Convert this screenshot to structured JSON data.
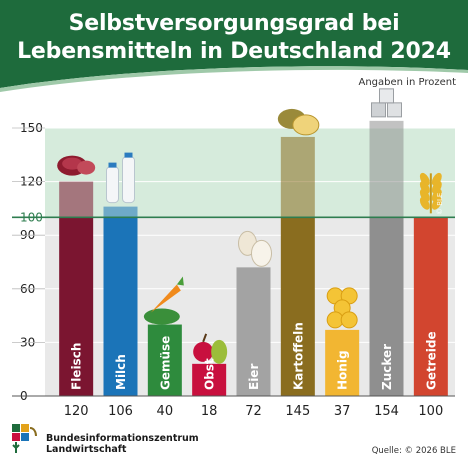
{
  "header": {
    "title_line1": "Selbstversorgungsgrad bei",
    "title_line2": "Lebensmitteln in Deutschland 2024",
    "unit_note": "Angaben in Prozent"
  },
  "footer": {
    "org_line1": "Bundesinformationszentrum",
    "org_line2": "Landwirtschaft",
    "source": "Quelle: © 2026 BLE",
    "watermark": "© BLE"
  },
  "colors": {
    "brand_green": "#1e6b3c",
    "band_green": "#d6ebdc",
    "below_grey": "#e9e9e9",
    "reference_line": "#2e7d4f"
  },
  "chart_data": {
    "type": "bar",
    "categories": [
      "Fleisch",
      "Milch",
      "Gemüse",
      "Obst",
      "Eier",
      "Kartoffeln",
      "Honig",
      "Zucker",
      "Getreide"
    ],
    "values": [
      120,
      106,
      40,
      18,
      72,
      145,
      37,
      154,
      100
    ],
    "colors": [
      "#7b1530",
      "#1b74b8",
      "#2e8b3d",
      "#c8103e",
      "#a3a3a3",
      "#8a6d1f",
      "#f2b632",
      "#8f8f8f",
      "#d2452f"
    ],
    "icons": [
      "meat-icon",
      "milk-bottles-icon",
      "vegetables-icon",
      "fruit-icon",
      "eggs-icon",
      "potatoes-icon",
      "honey-icon",
      "sugar-cubes-icon",
      "grain-icon"
    ],
    "ylim": [
      0,
      150
    ],
    "yticks": [
      0,
      30,
      60,
      90,
      100,
      120,
      150
    ],
    "reference_value": 100,
    "grid": true
  }
}
